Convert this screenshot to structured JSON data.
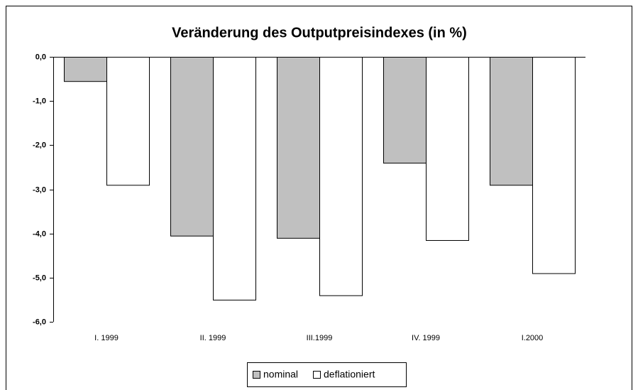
{
  "chart_data": {
    "type": "bar",
    "title": "Veränderung des Outputpreisindexes (in %)",
    "categories": [
      "I. 1999",
      "II. 1999",
      "III.1999",
      "IV. 1999",
      "I.2000"
    ],
    "series": [
      {
        "name": "nominal",
        "color": "#c0c0c0",
        "values": [
          -0.55,
          -4.05,
          -4.1,
          -2.4,
          -2.9
        ]
      },
      {
        "name": "deflationiert",
        "color": "#ffffff",
        "values": [
          -2.9,
          -5.5,
          -5.4,
          -4.15,
          -4.9
        ]
      }
    ],
    "ylim": [
      -6,
      0
    ],
    "yticks": [
      {
        "value": 0,
        "label": "0,0"
      },
      {
        "value": -1,
        "label": "-1,0"
      },
      {
        "value": -2,
        "label": "-2,0"
      },
      {
        "value": -3,
        "label": "-3,0"
      },
      {
        "value": -4,
        "label": "-4,0"
      },
      {
        "value": -5,
        "label": "-5,0"
      },
      {
        "value": -6,
        "label": "-6,0"
      }
    ],
    "legend": "bottom"
  }
}
